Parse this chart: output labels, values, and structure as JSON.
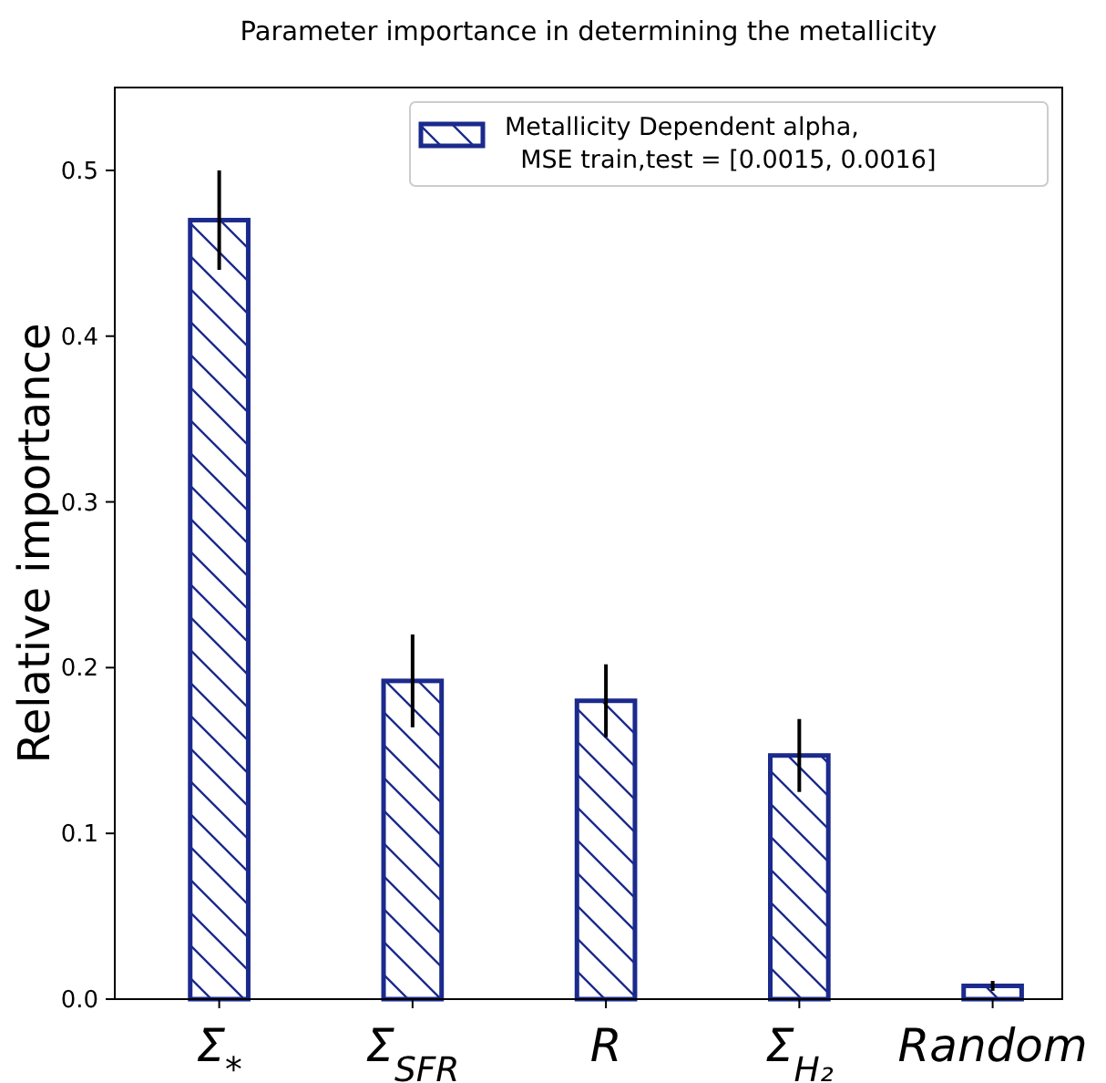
{
  "chart_data": {
    "type": "bar",
    "title": "Parameter importance in determining the metallicity",
    "ylabel": "Relative importance",
    "categories": [
      "Σ$_{*}$",
      "Σ$_{SFR}$",
      "R",
      "Σ$_{H₂}$",
      "Random"
    ],
    "series": [
      {
        "name": "Metallicity Dependent alpha,\n  MSE train,test = [0.0015, 0.0016]",
        "color": "#1b2a8c",
        "values": [
          0.47,
          0.192,
          0.18,
          0.147,
          0.008
        ],
        "errors": [
          0.03,
          0.028,
          0.022,
          0.022,
          0.003
        ]
      }
    ],
    "ylim": [
      0,
      0.55
    ],
    "yticks": [
      {
        "value": 0,
        "label": "0.0"
      },
      0.1,
      0.2,
      0.3,
      0.4,
      0.5
    ],
    "legend": "top right"
  }
}
